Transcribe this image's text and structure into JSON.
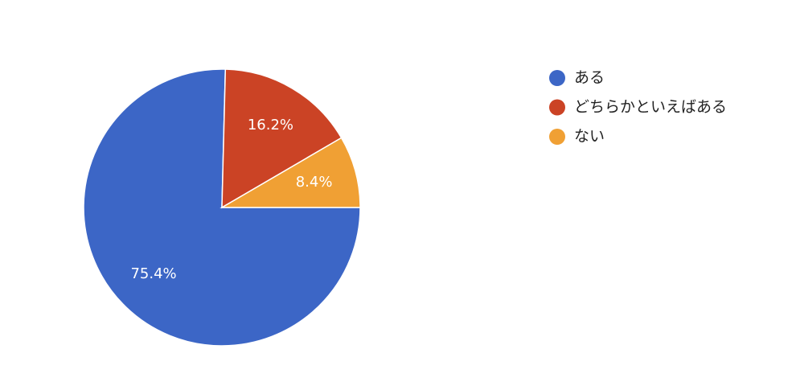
{
  "chart_data": {
    "type": "pie",
    "categories": [
      "ある",
      "どちらかといえばある",
      "ない"
    ],
    "values": [
      75.4,
      16.2,
      8.4
    ],
    "value_labels": [
      "75.4%",
      "16.2%",
      "8.4%"
    ],
    "colors": [
      "#3c66c6",
      "#cb4325",
      "#f0a034"
    ],
    "legend": "right"
  }
}
